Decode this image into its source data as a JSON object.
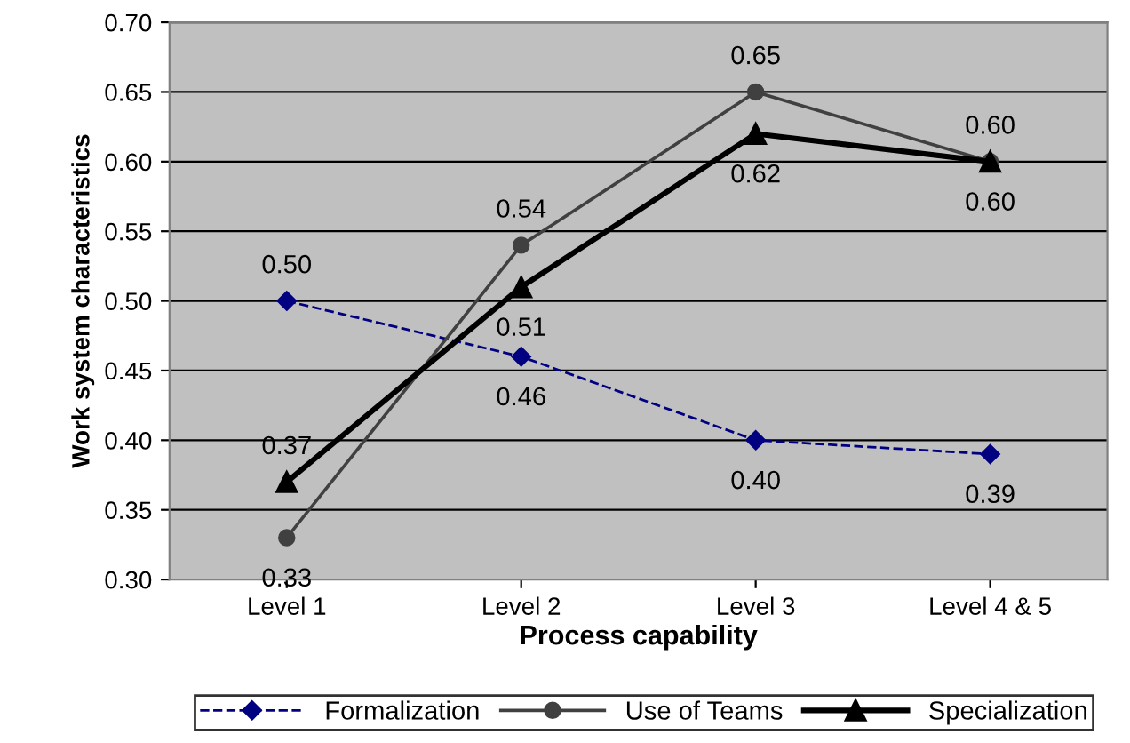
{
  "chart_data": {
    "type": "line",
    "xlabel": "Process capability",
    "ylabel": "Work system characteristics",
    "categories": [
      "Level 1",
      "Level 2",
      "Level 3",
      "Level 4 & 5"
    ],
    "series": [
      {
        "name": "Formalization",
        "color": "#000080",
        "values": [
          0.5,
          0.46,
          0.4,
          0.39
        ],
        "value_labels": [
          "0.50",
          "0.46",
          "0.40",
          "0.39"
        ],
        "marker": "diamond",
        "line_style": "dashed"
      },
      {
        "name": "Use of Teams",
        "color": "#404040",
        "values": [
          0.33,
          0.54,
          0.65,
          0.6
        ],
        "value_labels": [
          "0.33",
          "0.54",
          "0.65",
          "0.60"
        ],
        "marker": "circle",
        "line_style": "solid"
      },
      {
        "name": "Specialization",
        "color": "#000000",
        "values": [
          0.37,
          0.51,
          0.62,
          0.6
        ],
        "value_labels": [
          "0.37",
          "0.51",
          "0.62",
          "0.60"
        ],
        "marker": "triangle",
        "line_style": "solid"
      }
    ],
    "ylim": [
      0.3,
      0.7
    ],
    "yticks": [
      {
        "value": 0.3,
        "label": "0.30"
      },
      {
        "value": 0.35,
        "label": "0.35"
      },
      {
        "value": 0.4,
        "label": "0.40"
      },
      {
        "value": 0.45,
        "label": "0.45"
      },
      {
        "value": 0.5,
        "label": "0.50"
      },
      {
        "value": 0.55,
        "label": "0.55"
      },
      {
        "value": 0.6,
        "label": "0.60"
      },
      {
        "value": 0.65,
        "label": "0.65"
      },
      {
        "value": 0.7,
        "label": "0.70"
      }
    ],
    "grid": "y",
    "legend": "bottom"
  }
}
